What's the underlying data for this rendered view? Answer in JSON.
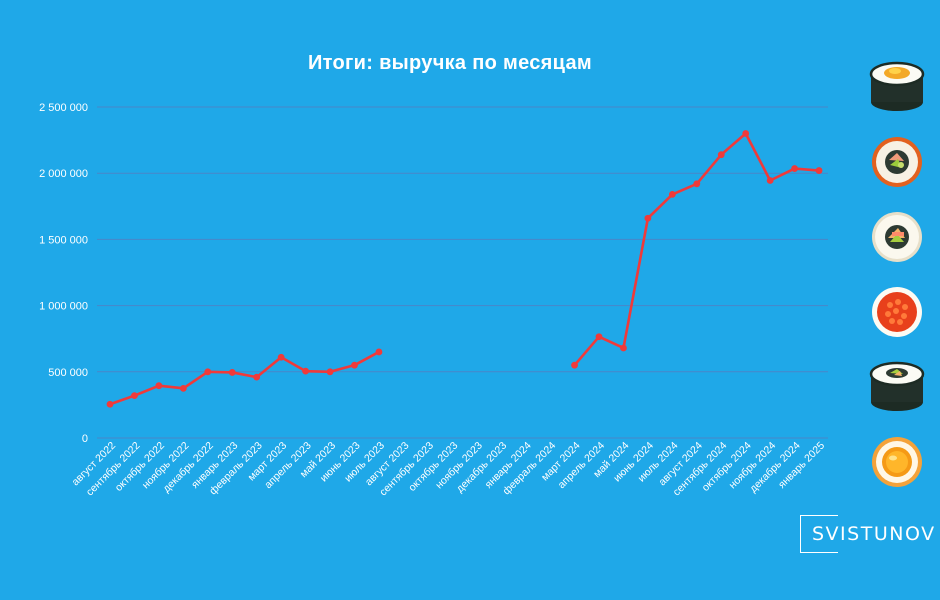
{
  "chart_data": {
    "type": "line",
    "title": "Итоги: выручка по месяцам",
    "categories": [
      "август 2022",
      "сентябрь 2022",
      "октябрь 2022",
      "ноябрь 2022",
      "декабрь 2022",
      "январь 2023",
      "февраль 2023",
      "март 2023",
      "апрель 2023",
      "май 2023",
      "июнь 2023",
      "июль 2023",
      "август 2023",
      "сентябрь 2023",
      "октябрь 2023",
      "ноябрь 2023",
      "декабрь 2023",
      "январь 2024",
      "февраль 2024",
      "март 2024",
      "апрель 2024",
      "май 2024",
      "июнь 2024",
      "июль 2024",
      "август 2024",
      "сентябрь 2024",
      "октябрь 2024",
      "ноябрь 2024",
      "декабрь 2024",
      "январь 2025"
    ],
    "series": [
      {
        "values": [
          255000,
          320000,
          395000,
          375000,
          500000,
          495000,
          460000,
          610000,
          505000,
          500000,
          550000,
          650000,
          null,
          null,
          null,
          null,
          null,
          null,
          null,
          550000,
          765000,
          680000,
          1660000,
          1840000,
          1920000,
          2140000,
          2300000,
          1945000,
          2035000,
          2020000
        ],
        "color": "#f03a3a"
      }
    ],
    "y_ticks": [
      0,
      500000,
      1000000,
      1500000,
      2000000,
      2500000
    ],
    "y_tick_labels": [
      "0",
      "500 000",
      "1 000 000",
      "1 500 000",
      "2 000 000",
      "2 500 000"
    ],
    "ylim": [
      0,
      2500000
    ],
    "grid": "horizontal",
    "xlabel": "",
    "ylabel": ""
  },
  "brand": {
    "name": "SVISTUNOV"
  },
  "colors": {
    "background": "#1fa8e8",
    "line": "#f03a3a",
    "grid": "#4a86c8",
    "text": "#ffffff"
  },
  "decorations": [
    "sushi-roll-egg",
    "sushi-roll-salmon-avocado",
    "sushi-roll-crab-avocado",
    "sushi-roll-caviar",
    "sushi-roll-seaweed-cucumber",
    "sushi-roll-egg-yolk"
  ]
}
